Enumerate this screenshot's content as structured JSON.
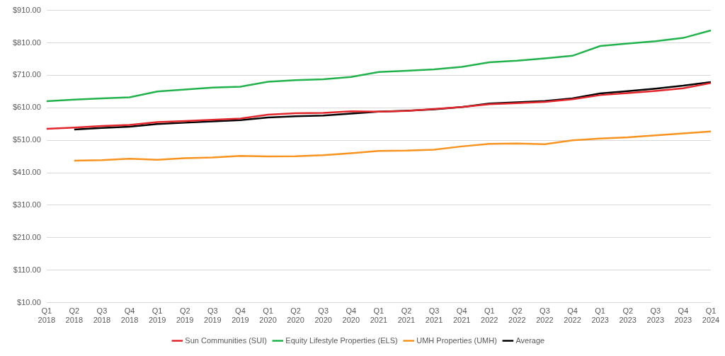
{
  "chart_data": {
    "type": "line",
    "categories": [
      "Q1 2018",
      "Q2 2018",
      "Q3 2018",
      "Q4 2018",
      "Q1 2019",
      "Q2 2019",
      "Q3 2019",
      "Q4 2019",
      "Q1 2020",
      "Q2 2020",
      "Q3 2020",
      "Q4 2020",
      "Q1 2021",
      "Q2 2021",
      "Q3 2021",
      "Q4 2021",
      "Q1 2022",
      "Q2 2022",
      "Q3 2022",
      "Q4 2022",
      "Q1 2023",
      "Q2 2023",
      "Q3 2023",
      "Q4 2023",
      "Q1 2024"
    ],
    "series": [
      {
        "name": "Sun Communities (SUI)",
        "color": "#e3262b",
        "values": [
          545,
          549,
          554,
          557,
          566,
          569,
          573,
          577,
          589,
          593,
          594,
          599,
          598,
          600,
          606,
          612,
          621,
          624,
          628,
          636,
          649,
          655,
          662,
          670,
          686
        ]
      },
      {
        "name": "Equity Lifestyle Properties (ELS)",
        "color": "#22b24c",
        "values": [
          630,
          635,
          639,
          642,
          660,
          666,
          672,
          675,
          690,
          695,
          698,
          705,
          720,
          724,
          728,
          736,
          750,
          755,
          762,
          770,
          800,
          808,
          815,
          825,
          848
        ]
      },
      {
        "name": "UMH Properties (UMH)",
        "color": "#f7931e",
        "values": [
          null,
          447,
          449,
          453,
          450,
          455,
          457,
          462,
          460,
          461,
          464,
          470,
          477,
          478,
          481,
          491,
          499,
          500,
          498,
          510,
          515,
          519,
          525,
          531,
          537
        ]
      },
      {
        "name": "Average",
        "color": "#000000",
        "values": [
          null,
          543,
          548,
          552,
          560,
          564,
          568,
          572,
          580,
          584,
          586,
          592,
          598,
          601,
          605,
          612,
          623,
          627,
          631,
          639,
          654,
          661,
          669,
          678,
          689
        ]
      }
    ],
    "ylim": [
      10,
      910
    ],
    "yticks": [
      {
        "value": 10,
        "label": "$10.00"
      },
      {
        "value": 110,
        "label": "$110.00"
      },
      {
        "value": 210,
        "label": "$210.00"
      },
      {
        "value": 310,
        "label": "$310.00"
      },
      {
        "value": 410,
        "label": "$410.00"
      },
      {
        "value": 510,
        "label": "$510.00"
      },
      {
        "value": 610,
        "label": "$610.00"
      },
      {
        "value": 710,
        "label": "$710.00"
      },
      {
        "value": 810,
        "label": "$810.00"
      },
      {
        "value": 910,
        "label": "$910.00"
      }
    ],
    "grid": true,
    "legend": "bottom",
    "marker": "none",
    "line_style": "solid"
  }
}
